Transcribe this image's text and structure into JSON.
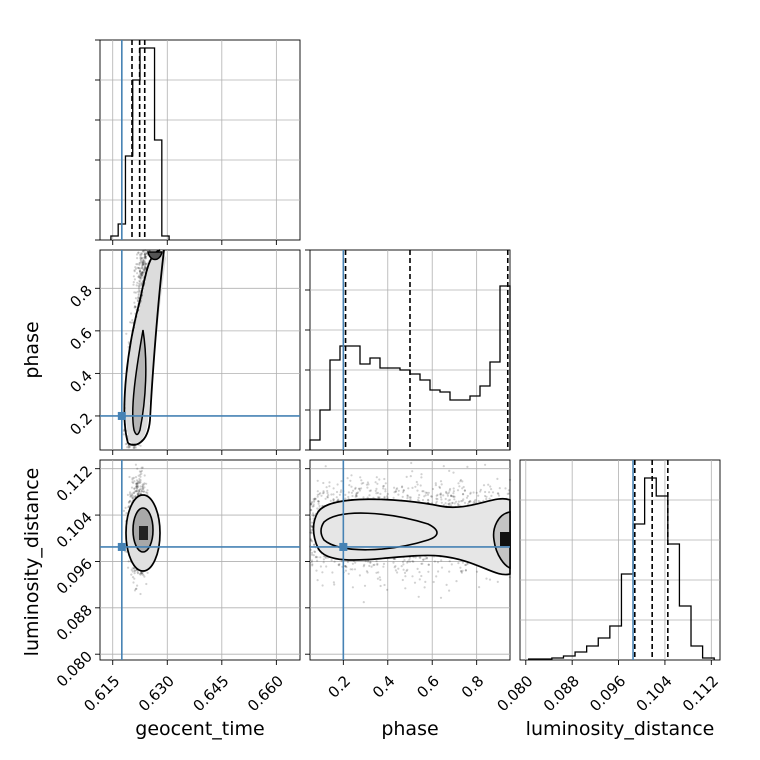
{
  "truth_color": "#4682b4",
  "chart_data": [
    {
      "type": "histogram",
      "panel": "geocent_time",
      "xlim": [
        0.6115,
        0.6665
      ],
      "bin_edges": [
        0.6145,
        0.6165,
        0.6185,
        0.6205,
        0.6225,
        0.6245,
        0.6265,
        0.6285,
        0.6305
      ],
      "counts": [
        0.02,
        0.08,
        0.42,
        0.8,
        0.96,
        0.96,
        0.5,
        0.02
      ],
      "quantiles": [
        0.6203,
        0.6224,
        0.6238
      ],
      "truth": 0.6175,
      "xticks": [
        0.615,
        0.63,
        0.645,
        0.66
      ]
    },
    {
      "type": "histogram",
      "panel": "phase",
      "xlim": [
        0.05,
        0.95
      ],
      "bin_edges": [
        0.05,
        0.095,
        0.14,
        0.185,
        0.23,
        0.275,
        0.32,
        0.365,
        0.41,
        0.455,
        0.5,
        0.545,
        0.59,
        0.635,
        0.68,
        0.725,
        0.77,
        0.815,
        0.86,
        0.905,
        0.95
      ],
      "counts": [
        0.05,
        0.2,
        0.45,
        0.52,
        0.52,
        0.43,
        0.46,
        0.41,
        0.41,
        0.4,
        0.38,
        0.35,
        0.3,
        0.29,
        0.25,
        0.25,
        0.27,
        0.32,
        0.44,
        0.82
      ],
      "quantiles": [
        0.21,
        0.5,
        0.94
      ],
      "truth": 0.2,
      "xticks": [
        0.2,
        0.4,
        0.6,
        0.8
      ]
    },
    {
      "type": "histogram",
      "panel": "luminosity_distance",
      "xlim": [
        0.079,
        0.1135
      ],
      "bin_edges": [
        0.0805,
        0.0825,
        0.0845,
        0.0865,
        0.0885,
        0.0905,
        0.0925,
        0.0945,
        0.0965,
        0.0985,
        0.1005,
        0.1025,
        0.1045,
        0.1065,
        0.1085,
        0.1105,
        0.1125
      ],
      "counts": [
        0.005,
        0.005,
        0.01,
        0.02,
        0.04,
        0.07,
        0.11,
        0.17,
        0.43,
        0.68,
        0.91,
        0.82,
        0.58,
        0.27,
        0.07,
        0.01
      ],
      "quantiles": [
        0.0988,
        0.1018,
        0.1045
      ],
      "truth": 0.0985,
      "xticks": [
        0.08,
        0.088,
        0.096,
        0.104,
        0.112
      ]
    },
    {
      "type": "scatter-contour",
      "panel": "geocent_time vs phase",
      "xlim": [
        0.6115,
        0.6665
      ],
      "ylim": [
        0.04,
        0.98
      ],
      "truth": [
        0.6175,
        0.2
      ],
      "yticks": [
        0.2,
        0.4,
        0.6,
        0.8
      ]
    },
    {
      "type": "scatter-contour",
      "panel": "geocent_time vs luminosity_distance",
      "xlim": [
        0.6115,
        0.6665
      ],
      "ylim": [
        0.079,
        0.1135
      ],
      "truth": [
        0.6175,
        0.0985
      ],
      "yticks": [
        0.08,
        0.088,
        0.096,
        0.104,
        0.112
      ]
    },
    {
      "type": "scatter-contour",
      "panel": "phase vs luminosity_distance",
      "xlim": [
        0.05,
        0.95
      ],
      "ylim": [
        0.079,
        0.1135
      ],
      "truth": [
        0.2,
        0.0985
      ]
    }
  ],
  "labels": {
    "geocent_time": "geocent_time",
    "phase": "phase",
    "luminosity_distance": "luminosity_distance"
  }
}
